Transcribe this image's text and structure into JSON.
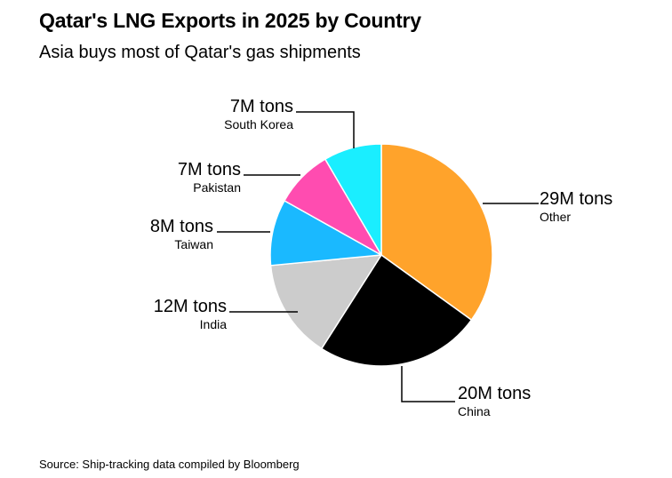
{
  "title": "Qatar's LNG Exports in 2025 by Country",
  "subtitle": "Asia buys most of Qatar's gas shipments",
  "source": "Source: Ship-tracking data compiled by Bloomberg",
  "chart_data": {
    "type": "pie",
    "title": "Qatar's LNG Exports in 2025 by Country",
    "subtitle": "Asia buys most of Qatar's gas shipments",
    "unit": "M tons",
    "start": "12 o'clock, clockwise",
    "slices": [
      {
        "name": "Other",
        "value": 29,
        "label": "29M tons",
        "color": "#ffa32b"
      },
      {
        "name": "China",
        "value": 20,
        "label": "20M tons",
        "color": "#000000"
      },
      {
        "name": "India",
        "value": 12,
        "label": "12M tons",
        "color": "#cccccc"
      },
      {
        "name": "Taiwan",
        "value": 8,
        "label": "8M tons",
        "color": "#1ab9ff"
      },
      {
        "name": "Pakistan",
        "value": 7,
        "label": "7M tons",
        "color": "#ff4cb0"
      },
      {
        "name": "South Korea",
        "value": 7,
        "label": "7M tons",
        "color": "#1aeeff"
      }
    ]
  }
}
